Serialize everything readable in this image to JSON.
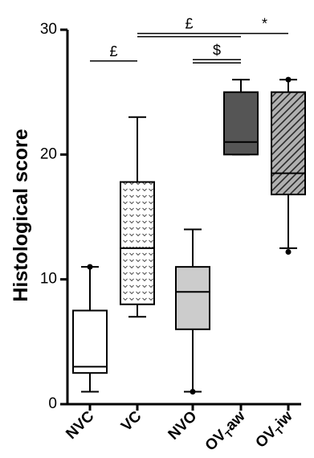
{
  "chart_data": {
    "type": "box",
    "title": "",
    "xlabel": "",
    "ylabel": "Histological score",
    "ylim": [
      0,
      30
    ],
    "yticks": [
      0,
      10,
      20,
      30
    ],
    "grid": false,
    "categories": [
      {
        "label": "NVC",
        "sub": ""
      },
      {
        "label": "VC",
        "sub": ""
      },
      {
        "label": "NVO",
        "sub": ""
      },
      {
        "label": "OV",
        "sub": "T",
        "suffix": "aw"
      },
      {
        "label": "OV",
        "sub": "T",
        "suffix": "iw"
      }
    ],
    "boxes": [
      {
        "min": 1,
        "q1": 2.5,
        "median": 3,
        "q3": 7.5,
        "max": 11,
        "outliers": [
          11
        ],
        "fill": "#ffffff",
        "pattern": "none"
      },
      {
        "min": 7,
        "q1": 8,
        "median": 12.5,
        "q3": 17.8,
        "max": 23,
        "outliers": [],
        "fill": "#ffffff",
        "pattern": "chevrons"
      },
      {
        "min": 1,
        "q1": 6,
        "median": 9,
        "q3": 11,
        "max": 14,
        "outliers": [
          1
        ],
        "fill": "#cccccc",
        "pattern": "none"
      },
      {
        "min": 20,
        "q1": 20,
        "median": 21,
        "q3": 25,
        "max": 26,
        "outliers": [],
        "fill": "#555555",
        "pattern": "none"
      },
      {
        "min": 12.5,
        "q1": 16.8,
        "median": 18.5,
        "q3": 25,
        "max": 26,
        "outliers": [
          12.2,
          26
        ],
        "fill": "#b0b0b0",
        "pattern": "hatch"
      }
    ],
    "significance": [
      {
        "from": 0,
        "to": 1,
        "y": 27.5,
        "label": "£",
        "lines": 1
      },
      {
        "from": 1,
        "to": 3,
        "y": 29.7,
        "label": "£",
        "lines": 2
      },
      {
        "from": 3,
        "to": 4,
        "y": 29.7,
        "label": "*",
        "lines": 1
      },
      {
        "from": 2,
        "to": 3,
        "y": 27.6,
        "label": "$",
        "lines": 2
      }
    ]
  }
}
